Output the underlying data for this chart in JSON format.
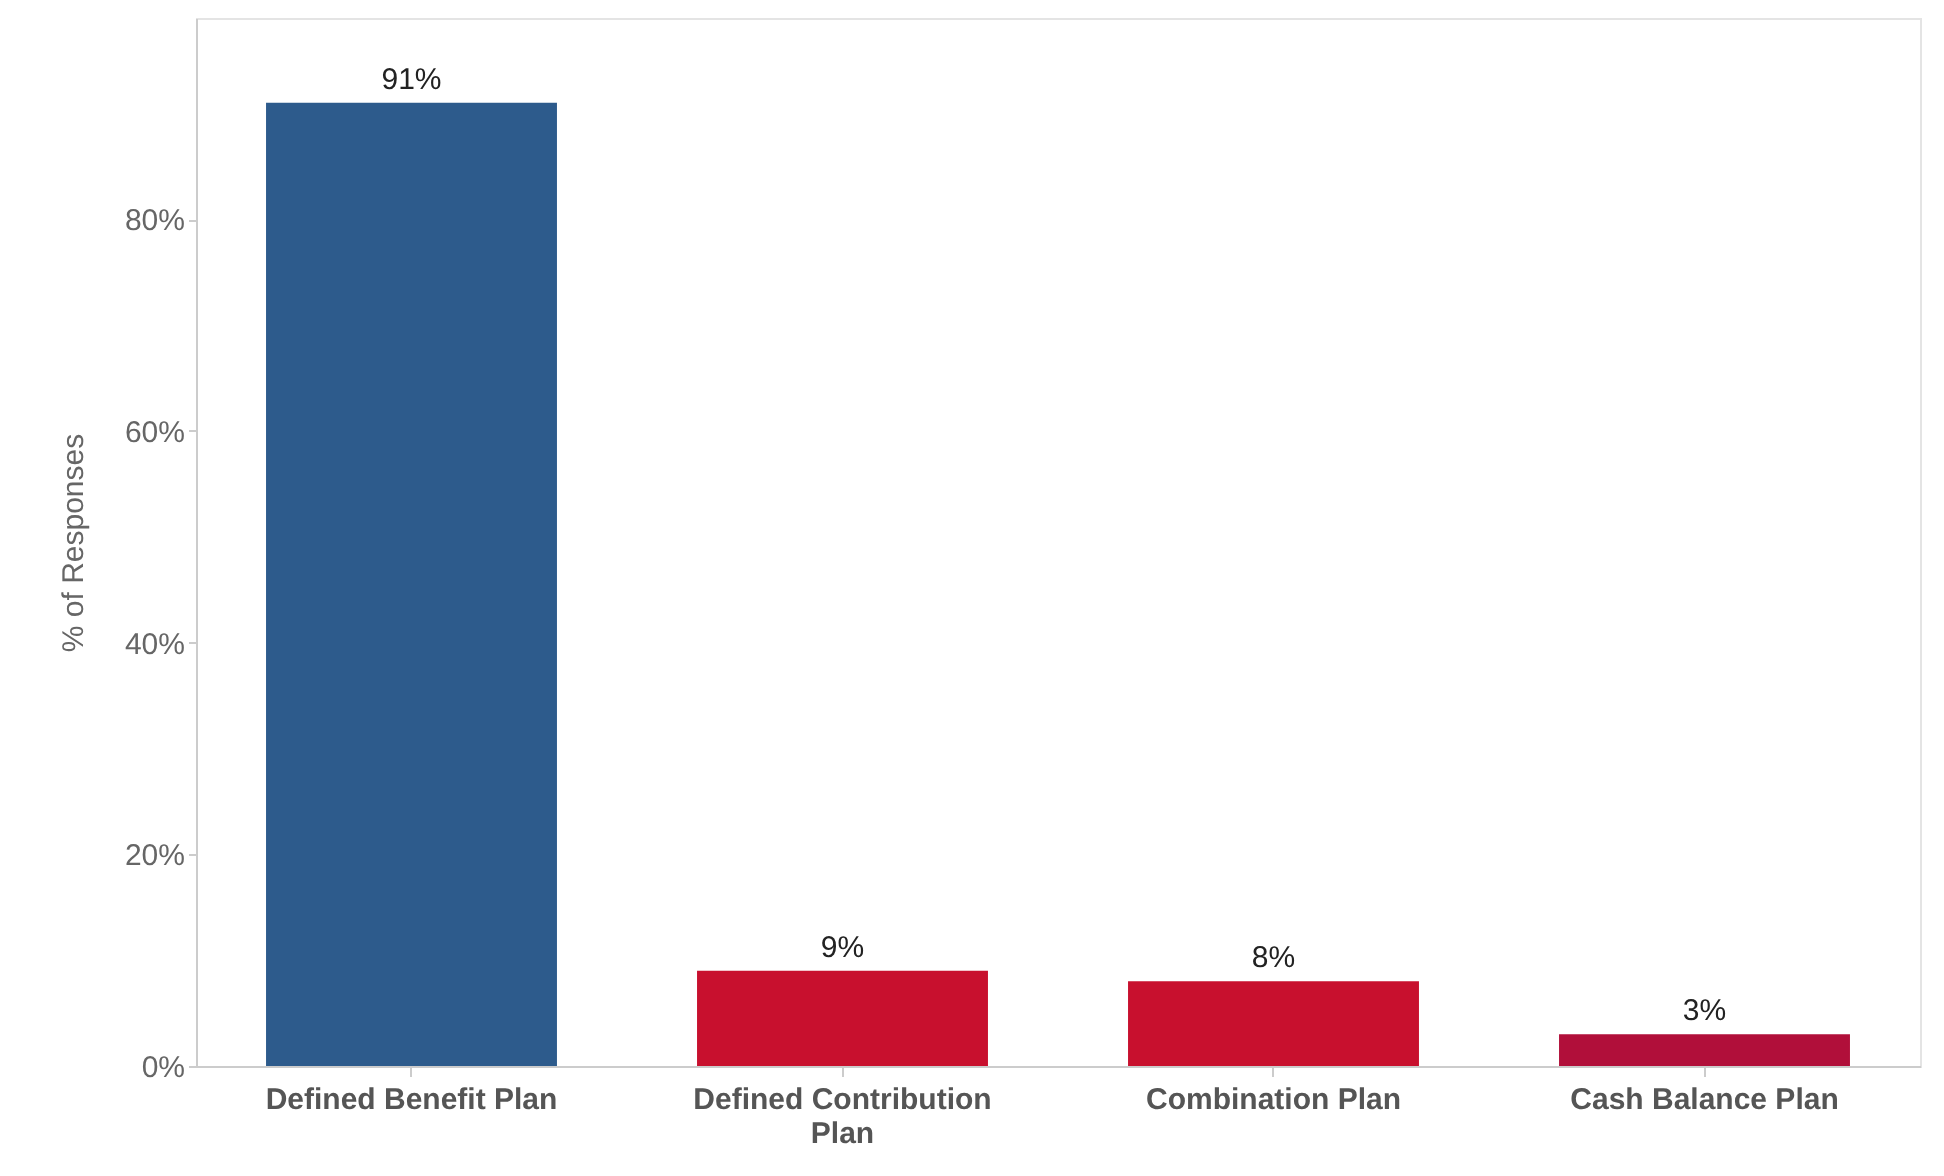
{
  "chart_data": {
    "type": "bar",
    "ylabel": "% of Responses",
    "categories": [
      "Defined Benefit Plan",
      "Defined Contribution Plan",
      "Combination Plan",
      "Cash Balance Plan"
    ],
    "values": [
      91,
      9,
      8,
      3
    ],
    "colors": [
      "#2d5b8c",
      "#c8102e",
      "#c8102e",
      "#b10f3a"
    ],
    "value_labels": [
      "91%",
      "9%",
      "8%",
      "3%"
    ],
    "ylim": [
      0,
      99
    ],
    "yticks": [
      {
        "value": 0,
        "label": "0%"
      },
      {
        "value": 20,
        "label": "20%"
      },
      {
        "value": 40,
        "label": "40%"
      },
      {
        "value": 60,
        "label": "60%"
      },
      {
        "value": 80,
        "label": "80%"
      }
    ],
    "grid": false
  }
}
